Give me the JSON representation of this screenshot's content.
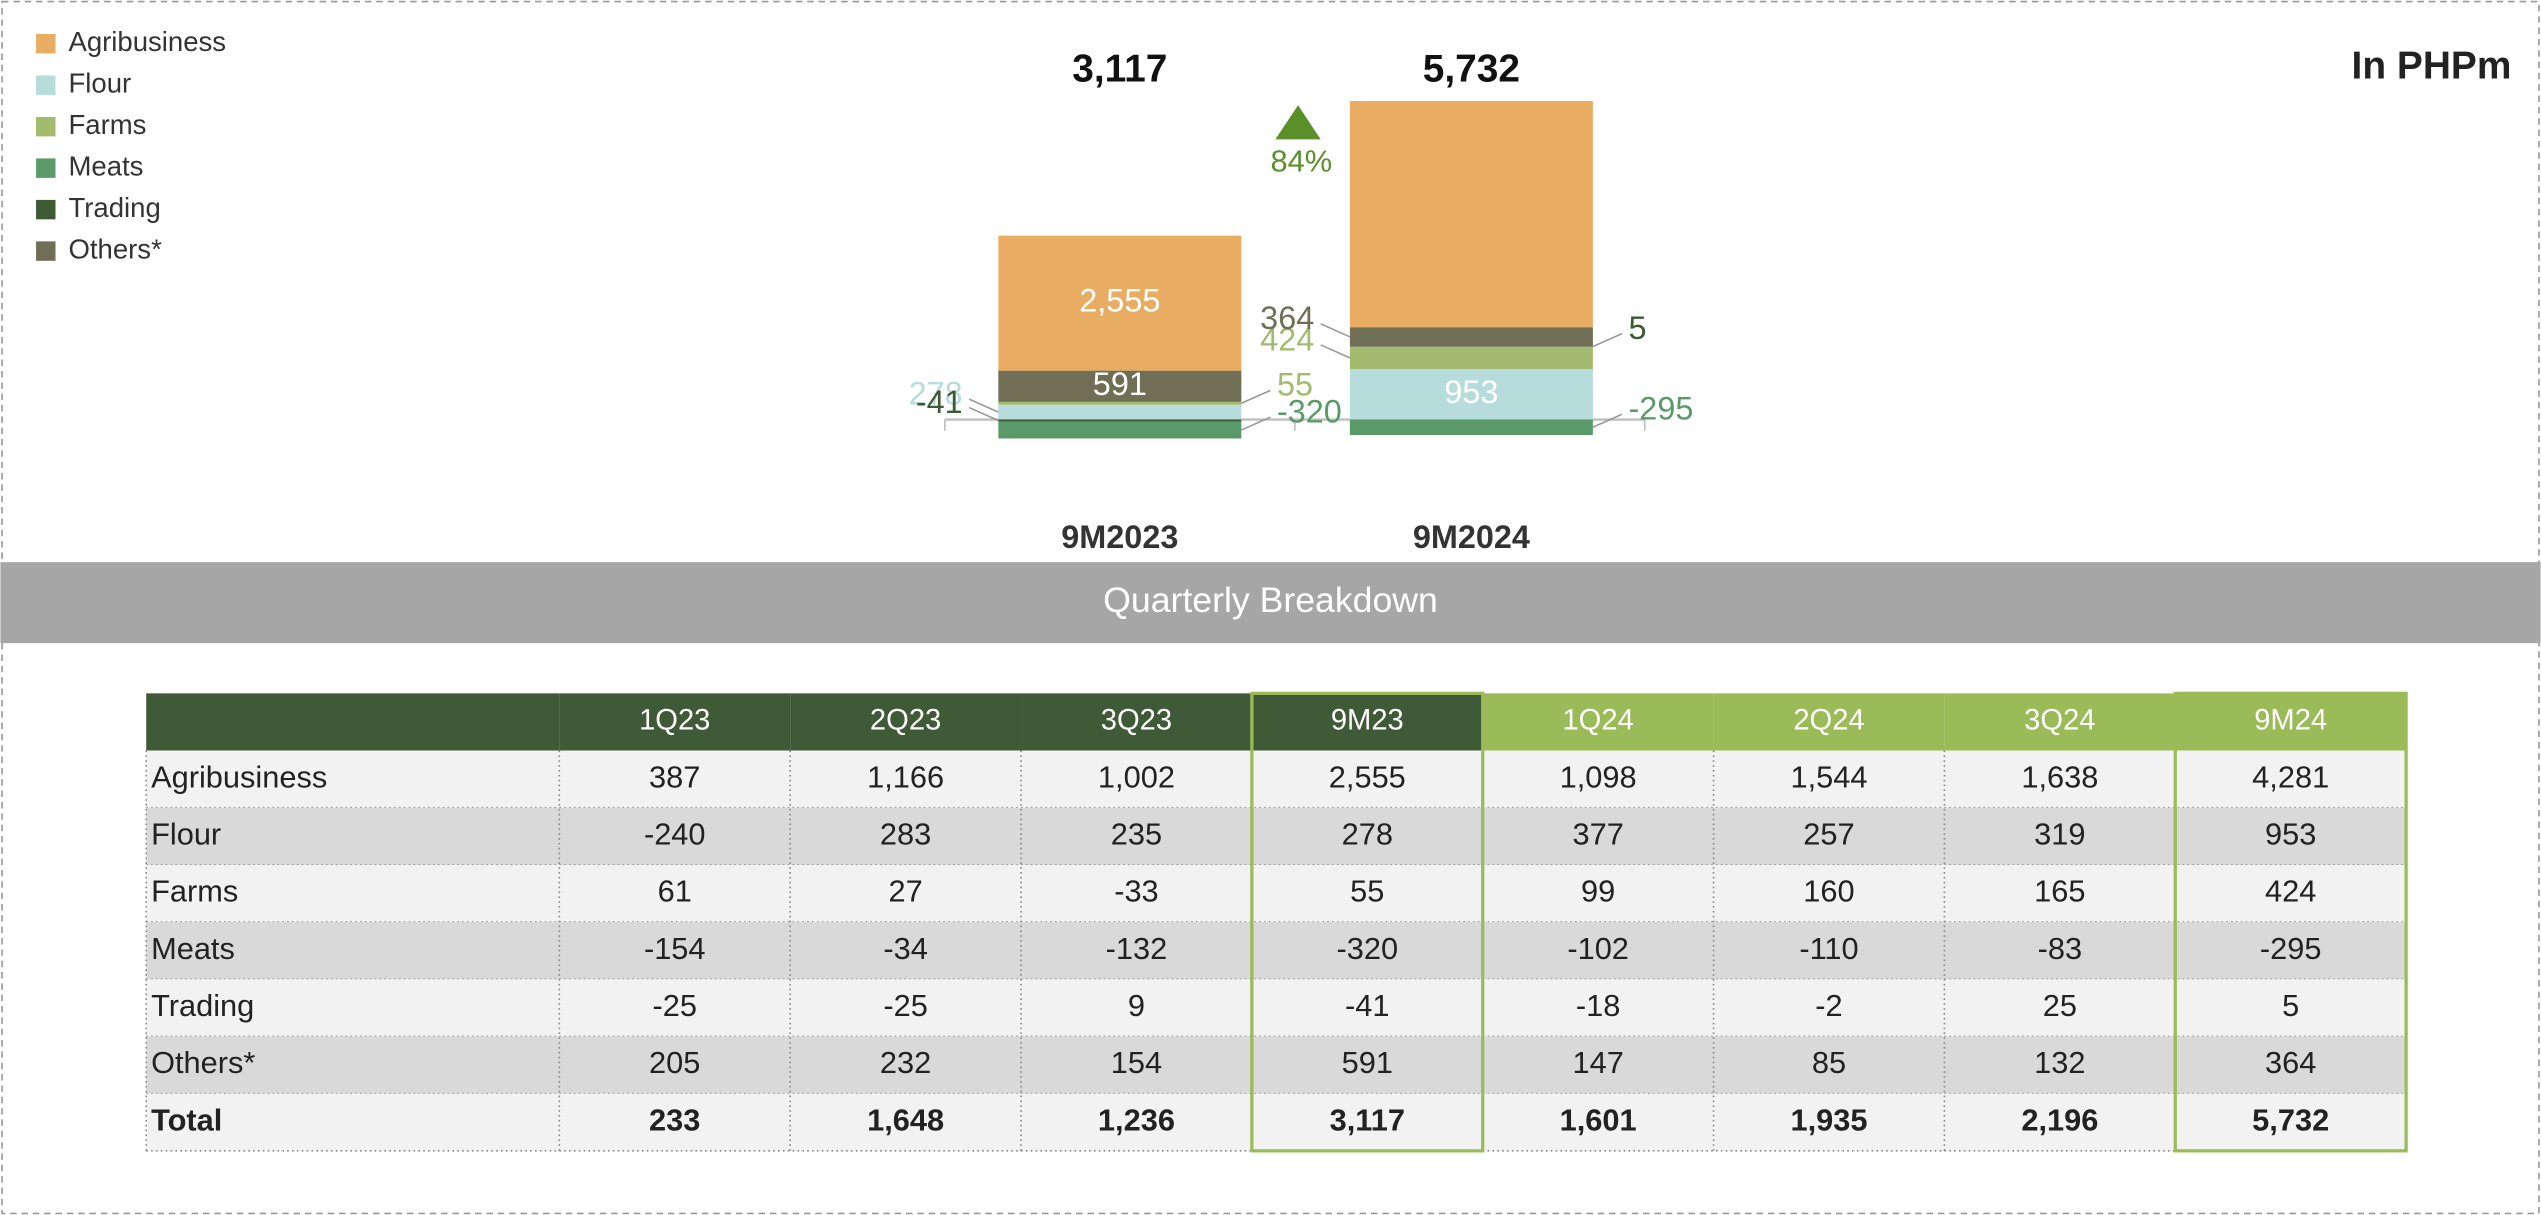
{
  "chart_data": {
    "type": "stacked_bar",
    "unit_label": "In PHPm",
    "categories": [
      "9M2023",
      "9M2024"
    ],
    "series": [
      {
        "name": "Agribusiness",
        "color": "#e8ad62",
        "values": [
          2555,
          4281
        ],
        "value_labels": [
          "2,555",
          null
        ]
      },
      {
        "name": "Flour",
        "color": "#b7dcdc",
        "values": [
          278,
          953
        ]
      },
      {
        "name": "Farms",
        "color": "#a3bb6e",
        "values": [
          55,
          424
        ]
      },
      {
        "name": "Meats",
        "color": "#5a9a68",
        "values": [
          -320,
          -295
        ]
      },
      {
        "name": "Trading",
        "color": "#3d5a35",
        "values": [
          -41,
          5
        ]
      },
      {
        "name": "Others*",
        "color": "#706e55",
        "values": [
          591,
          364
        ]
      }
    ],
    "totals": {
      "values": [
        3117,
        5732
      ],
      "value_labels": [
        "3,117",
        "5,732"
      ]
    },
    "change": {
      "value": 84,
      "label": "84%",
      "color": "#5a8f2a"
    },
    "ylim": [
      -800,
      6100
    ],
    "legend": "top-left"
  },
  "banner": "Quarterly Breakdown",
  "table": {
    "columns": [
      "1Q23",
      "2Q23",
      "3Q23",
      "9M23",
      "1Q24",
      "2Q24",
      "3Q24",
      "9M24"
    ],
    "rows": [
      {
        "label": "Agribusiness",
        "values": [
          "387",
          "1,166",
          "1,002",
          "2,555",
          "1,098",
          "1,544",
          "1,638",
          "4,281"
        ]
      },
      {
        "label": "Flour",
        "values": [
          "-240",
          "283",
          "235",
          "278",
          "377",
          "257",
          "319",
          "953"
        ]
      },
      {
        "label": "Farms",
        "values": [
          "61",
          "27",
          "-33",
          "55",
          "99",
          "160",
          "165",
          "424"
        ]
      },
      {
        "label": "Meats",
        "values": [
          "-154",
          "-34",
          "-132",
          "-320",
          "-102",
          "-110",
          "-83",
          "-295"
        ]
      },
      {
        "label": "Trading",
        "values": [
          "-25",
          "-25",
          "9",
          "-41",
          "-18",
          "-2",
          "25",
          "5"
        ]
      },
      {
        "label": "Others*",
        "values": [
          "205",
          "232",
          "154",
          "591",
          "147",
          "85",
          "132",
          "364"
        ]
      },
      {
        "label": "Total",
        "values": [
          "233",
          "1,648",
          "1,236",
          "3,117",
          "1,601",
          "1,935",
          "2,196",
          "5,732"
        ]
      }
    ]
  }
}
